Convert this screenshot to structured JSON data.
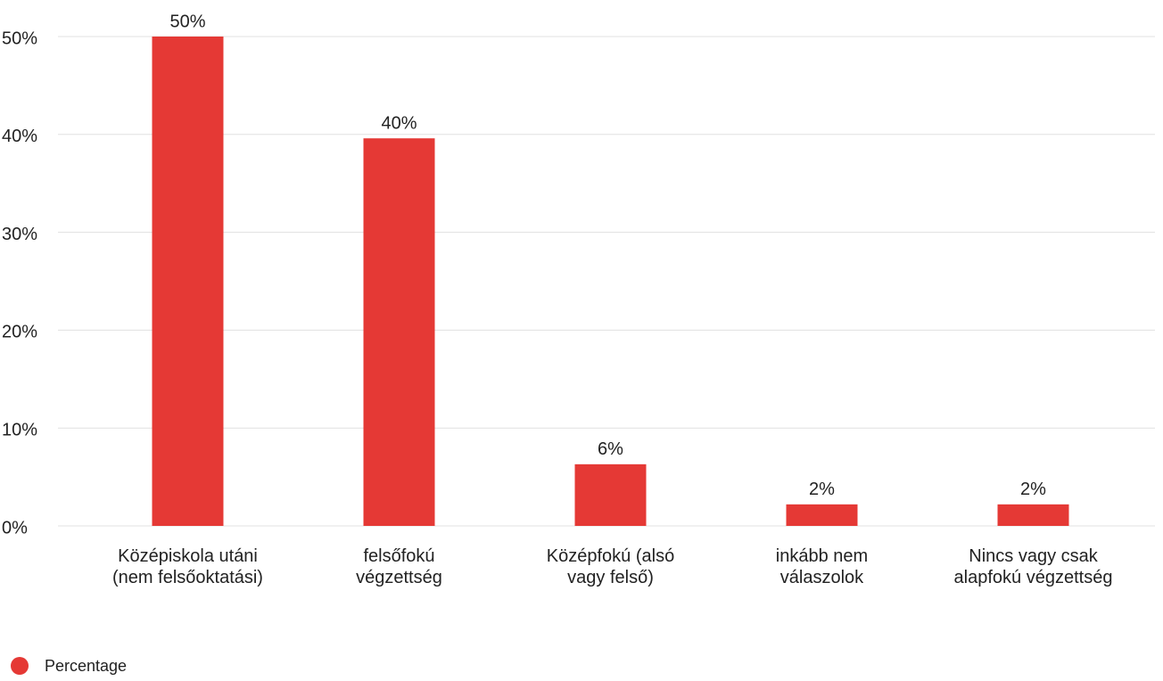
{
  "chart_data": {
    "type": "bar",
    "categories": [
      "Középiskola utáni (nem felsőoktatási)",
      "felsőfokú végzettség",
      "Középfokú (alsó vagy felső)",
      "inkább nem válaszolok",
      "Nincs vagy csak alapfokú végzettség"
    ],
    "series": [
      {
        "name": "Percentage",
        "color": "#e53935",
        "values": [
          50,
          39.6,
          6.3,
          2.2,
          2.2
        ],
        "value_labels": [
          "50%",
          "40%",
          "6%",
          "2%",
          "2%"
        ]
      }
    ],
    "ylim": [
      0,
      50
    ],
    "yticks": [
      {
        "value": 0,
        "label": "0%"
      },
      {
        "value": 10,
        "label": "10%"
      },
      {
        "value": 20,
        "label": "20%"
      },
      {
        "value": 30,
        "label": "30%"
      },
      {
        "value": 40,
        "label": "40%"
      },
      {
        "value": 50,
        "label": "50%"
      }
    ],
    "grid": true,
    "legend": "bottom-left"
  }
}
